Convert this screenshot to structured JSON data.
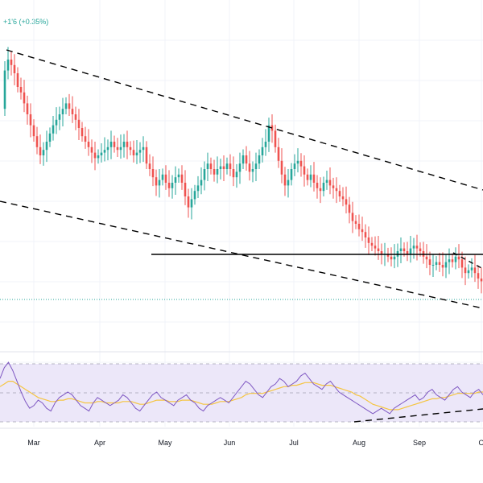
{
  "header": {
    "change_text": "+1'6 (+0.35%)"
  },
  "colors": {
    "up": "#26a69a",
    "down": "#ef5350",
    "rsi_line": "#7e57c2",
    "rsi_ma": "#f5c542",
    "rsi_band": "#ece7f9",
    "trend": "#000000",
    "grid": "#f0f3fa"
  },
  "chart_data": [
    {
      "type": "candlestick",
      "x_labels": [
        "Mar",
        "Apr",
        "May",
        "Jun",
        "Jul",
        "Aug",
        "Sep",
        "O"
      ],
      "grid": true,
      "ylim": [
        0,
        100
      ],
      "close_path": [
        [
          0,
          72
        ],
        [
          4,
          86
        ],
        [
          8,
          90
        ],
        [
          12,
          88
        ],
        [
          16,
          85
        ],
        [
          20,
          80
        ],
        [
          24,
          78
        ],
        [
          28,
          74
        ],
        [
          32,
          70
        ],
        [
          36,
          66
        ],
        [
          40,
          62
        ],
        [
          44,
          58
        ],
        [
          48,
          55
        ],
        [
          52,
          57
        ],
        [
          56,
          60
        ],
        [
          60,
          63
        ],
        [
          64,
          66
        ],
        [
          68,
          68
        ],
        [
          72,
          70
        ],
        [
          76,
          72
        ],
        [
          80,
          74
        ],
        [
          84,
          72
        ],
        [
          88,
          70
        ],
        [
          92,
          68
        ],
        [
          96,
          65
        ],
        [
          100,
          62
        ],
        [
          104,
          60
        ],
        [
          108,
          58
        ],
        [
          112,
          56
        ],
        [
          116,
          54
        ],
        [
          120,
          55
        ],
        [
          124,
          56
        ],
        [
          128,
          57
        ],
        [
          132,
          58
        ],
        [
          136,
          60
        ],
        [
          140,
          58
        ],
        [
          144,
          57
        ],
        [
          148,
          58
        ],
        [
          152,
          60
        ],
        [
          156,
          58
        ],
        [
          160,
          57
        ],
        [
          164,
          55
        ],
        [
          168,
          56
        ],
        [
          172,
          57
        ],
        [
          176,
          58
        ],
        [
          180,
          52
        ],
        [
          184,
          50
        ],
        [
          188,
          47
        ],
        [
          192,
          44
        ],
        [
          196,
          46
        ],
        [
          200,
          48
        ],
        [
          204,
          45
        ],
        [
          208,
          43
        ],
        [
          212,
          45
        ],
        [
          216,
          47
        ],
        [
          220,
          48
        ],
        [
          224,
          45
        ],
        [
          228,
          40
        ],
        [
          232,
          36
        ],
        [
          236,
          39
        ],
        [
          240,
          42
        ],
        [
          244,
          44
        ],
        [
          248,
          46
        ],
        [
          252,
          50
        ],
        [
          256,
          52
        ],
        [
          260,
          50
        ],
        [
          264,
          48
        ],
        [
          268,
          50
        ],
        [
          272,
          51
        ],
        [
          276,
          50
        ],
        [
          280,
          52
        ],
        [
          284,
          50
        ],
        [
          288,
          47
        ],
        [
          292,
          49
        ],
        [
          296,
          52
        ],
        [
          300,
          55
        ],
        [
          304,
          52
        ],
        [
          308,
          49
        ],
        [
          312,
          50
        ],
        [
          316,
          52
        ],
        [
          320,
          55
        ],
        [
          324,
          58
        ],
        [
          328,
          60
        ],
        [
          332,
          66
        ],
        [
          336,
          64
        ],
        [
          340,
          58
        ],
        [
          344,
          53
        ],
        [
          348,
          48
        ],
        [
          352,
          44
        ],
        [
          356,
          46
        ],
        [
          360,
          50
        ],
        [
          364,
          52
        ],
        [
          368,
          53
        ],
        [
          372,
          51
        ],
        [
          376,
          48
        ],
        [
          380,
          46
        ],
        [
          384,
          48
        ],
        [
          388,
          45
        ],
        [
          392,
          43
        ],
        [
          396,
          42
        ],
        [
          400,
          45
        ],
        [
          404,
          46
        ],
        [
          408,
          44
        ],
        [
          412,
          43
        ],
        [
          416,
          42
        ],
        [
          420,
          40
        ],
        [
          424,
          39
        ],
        [
          428,
          37
        ],
        [
          432,
          34
        ],
        [
          436,
          31
        ],
        [
          440,
          30
        ],
        [
          444,
          28
        ],
        [
          448,
          27
        ],
        [
          452,
          25
        ],
        [
          456,
          23
        ],
        [
          460,
          22
        ],
        [
          464,
          21
        ],
        [
          468,
          20
        ],
        [
          472,
          19
        ],
        [
          476,
          19
        ],
        [
          480,
          18
        ],
        [
          484,
          17
        ],
        [
          488,
          18
        ],
        [
          492,
          20
        ],
        [
          496,
          21
        ],
        [
          500,
          20
        ],
        [
          504,
          19
        ],
        [
          508,
          21
        ],
        [
          512,
          22
        ],
        [
          516,
          21
        ],
        [
          520,
          20
        ],
        [
          524,
          18
        ],
        [
          528,
          17
        ],
        [
          532,
          15
        ],
        [
          536,
          15
        ],
        [
          540,
          16
        ],
        [
          544,
          15
        ],
        [
          548,
          14
        ],
        [
          552,
          16
        ],
        [
          556,
          17
        ],
        [
          560,
          16
        ],
        [
          564,
          18
        ],
        [
          568,
          17
        ],
        [
          572,
          14
        ],
        [
          576,
          12
        ],
        [
          580,
          13
        ],
        [
          584,
          14
        ],
        [
          588,
          12
        ],
        [
          592,
          10
        ],
        [
          596,
          9
        ]
      ],
      "annotations": [
        "descending channel upper line",
        "descending channel lower line",
        "horizontal support line",
        "short falling wedge line"
      ]
    },
    {
      "type": "line",
      "role": "oscillator",
      "ylim": [
        0,
        100
      ],
      "series": [
        {
          "values": [
            62,
            70,
            74,
            68,
            60,
            52,
            45,
            40,
            42,
            46,
            44,
            40,
            38,
            44,
            48,
            50,
            52,
            50,
            46,
            42,
            40,
            38,
            44,
            48,
            46,
            44,
            42,
            44,
            46,
            50,
            48,
            44,
            40,
            38,
            42,
            46,
            50,
            52,
            48,
            46,
            44,
            42,
            46,
            48,
            50,
            46,
            44,
            40,
            38,
            42,
            44,
            46,
            48,
            46,
            44,
            48,
            52,
            56,
            60,
            58,
            54,
            50,
            48,
            52,
            56,
            58,
            62,
            60,
            56,
            58,
            60,
            64,
            66,
            62,
            58,
            56,
            54,
            58,
            60,
            56,
            52,
            50,
            48,
            46,
            44,
            42,
            40,
            38,
            36,
            38,
            40,
            38,
            36,
            40,
            42,
            44,
            46,
            48,
            50,
            46,
            48,
            52,
            54,
            50,
            48,
            46,
            50,
            54,
            56,
            52,
            50,
            48,
            52,
            54,
            50
          ]
        },
        {
          "values": [
            56,
            58,
            60,
            60,
            58,
            56,
            54,
            52,
            50,
            48,
            47,
            46,
            45,
            45,
            46,
            46,
            47,
            47,
            46,
            45,
            44,
            44,
            44,
            45,
            45,
            44,
            44,
            44,
            44,
            45,
            45,
            45,
            44,
            43,
            43,
            44,
            45,
            46,
            46,
            46,
            45,
            45,
            45,
            46,
            46,
            46,
            45,
            44,
            43,
            43,
            43,
            44,
            45,
            45,
            45,
            46,
            47,
            48,
            50,
            51,
            51,
            51,
            51,
            52,
            53,
            54,
            55,
            56,
            56,
            57,
            57,
            58,
            59,
            59,
            59,
            58,
            57,
            57,
            57,
            56,
            55,
            54,
            53,
            52,
            50,
            49,
            47,
            45,
            43,
            42,
            41,
            40,
            39,
            39,
            39,
            40,
            41,
            42,
            43,
            44,
            45,
            46,
            47,
            47,
            48,
            48,
            49,
            50,
            51,
            51,
            51,
            51,
            51,
            52,
            52
          ]
        }
      ],
      "bands": [
        30,
        50,
        70
      ]
    }
  ]
}
